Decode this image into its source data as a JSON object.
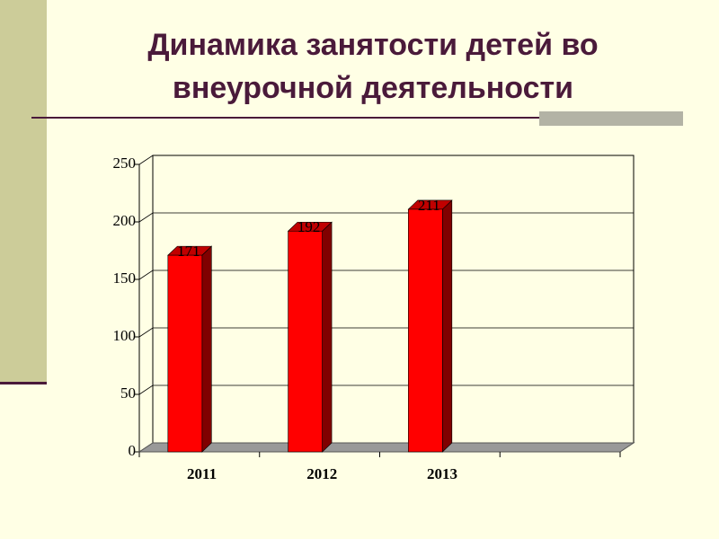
{
  "chart_data": {
    "type": "bar",
    "title": "Динамика занятости детей во внеурочной деятельности",
    "categories": [
      "2011",
      "2012",
      "2013",
      null
    ],
    "values": [
      171,
      192,
      211,
      null
    ],
    "color": "#ff0000",
    "ylim": [
      0,
      250
    ],
    "yticks": [
      0,
      50,
      100,
      150,
      200,
      250
    ],
    "grid": true
  }
}
